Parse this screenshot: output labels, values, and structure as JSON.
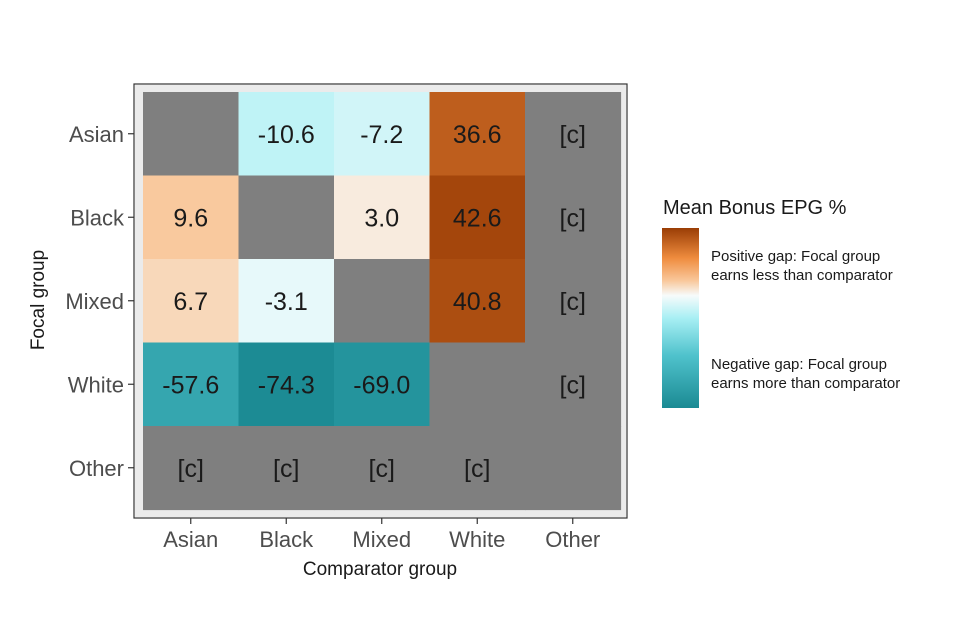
{
  "chart_data": {
    "type": "heatmap",
    "title": "",
    "xlabel": "Comparator group",
    "ylabel": "Focal group",
    "x_categories": [
      "Asian",
      "Black",
      "Mixed",
      "White",
      "Other"
    ],
    "y_categories": [
      "Asian",
      "Black",
      "Mixed",
      "White",
      "Other"
    ],
    "cells": [
      {
        "focal": "Asian",
        "comparator": "Asian",
        "value": null,
        "label": "",
        "suppressed": false
      },
      {
        "focal": "Asian",
        "comparator": "Black",
        "value": -10.6,
        "label": "-10.6",
        "suppressed": false
      },
      {
        "focal": "Asian",
        "comparator": "Mixed",
        "value": -7.2,
        "label": "-7.2",
        "suppressed": false
      },
      {
        "focal": "Asian",
        "comparator": "White",
        "value": 36.6,
        "label": "36.6",
        "suppressed": false
      },
      {
        "focal": "Asian",
        "comparator": "Other",
        "value": null,
        "label": "[c]",
        "suppressed": true
      },
      {
        "focal": "Black",
        "comparator": "Asian",
        "value": 9.6,
        "label": "9.6",
        "suppressed": false
      },
      {
        "focal": "Black",
        "comparator": "Black",
        "value": null,
        "label": "",
        "suppressed": false
      },
      {
        "focal": "Black",
        "comparator": "Mixed",
        "value": 3.0,
        "label": "3.0",
        "suppressed": false
      },
      {
        "focal": "Black",
        "comparator": "White",
        "value": 42.6,
        "label": "42.6",
        "suppressed": false
      },
      {
        "focal": "Black",
        "comparator": "Other",
        "value": null,
        "label": "[c]",
        "suppressed": true
      },
      {
        "focal": "Mixed",
        "comparator": "Asian",
        "value": 6.7,
        "label": "6.7",
        "suppressed": false
      },
      {
        "focal": "Mixed",
        "comparator": "Black",
        "value": -3.1,
        "label": "-3.1",
        "suppressed": false
      },
      {
        "focal": "Mixed",
        "comparator": "Mixed",
        "value": null,
        "label": "",
        "suppressed": false
      },
      {
        "focal": "Mixed",
        "comparator": "White",
        "value": 40.8,
        "label": "40.8",
        "suppressed": false
      },
      {
        "focal": "Mixed",
        "comparator": "Other",
        "value": null,
        "label": "[c]",
        "suppressed": true
      },
      {
        "focal": "White",
        "comparator": "Asian",
        "value": -57.6,
        "label": "-57.6",
        "suppressed": false
      },
      {
        "focal": "White",
        "comparator": "Black",
        "value": -74.3,
        "label": "-74.3",
        "suppressed": false
      },
      {
        "focal": "White",
        "comparator": "Mixed",
        "value": -69.0,
        "label": "-69.0",
        "suppressed": false
      },
      {
        "focal": "White",
        "comparator": "White",
        "value": null,
        "label": "",
        "suppressed": false
      },
      {
        "focal": "White",
        "comparator": "Other",
        "value": null,
        "label": "[c]",
        "suppressed": true
      },
      {
        "focal": "Other",
        "comparator": "Asian",
        "value": null,
        "label": "[c]",
        "suppressed": true
      },
      {
        "focal": "Other",
        "comparator": "Black",
        "value": null,
        "label": "[c]",
        "suppressed": true
      },
      {
        "focal": "Other",
        "comparator": "Mixed",
        "value": null,
        "label": "[c]",
        "suppressed": true
      },
      {
        "focal": "Other",
        "comparator": "White",
        "value": null,
        "label": "[c]",
        "suppressed": true
      },
      {
        "focal": "Other",
        "comparator": "Other",
        "value": null,
        "label": "",
        "suppressed": false
      }
    ],
    "legend": {
      "title": "Mean Bonus EPG %",
      "placement": "right",
      "positive_note_lines": [
        "Positive gap: Focal group",
        "earns less than comparator"
      ],
      "negative_note_lines": [
        "Negative gap: Focal group",
        "earns more than comparator"
      ]
    },
    "colors": {
      "na": "#7f7f7f",
      "panel_background": "#ebebeb",
      "panel_border": "#333333",
      "scale": [
        {
          "value": -75,
          "color": "#1b8a93"
        },
        {
          "value": -40,
          "color": "#4fc2cc"
        },
        {
          "value": -15,
          "color": "#a8eff4"
        },
        {
          "value": 0,
          "color": "#f7fbfb"
        },
        {
          "value": 10,
          "color": "#f9c79a"
        },
        {
          "value": 25,
          "color": "#ef8c3e"
        },
        {
          "value": 45,
          "color": "#9a3d05"
        }
      ]
    }
  }
}
